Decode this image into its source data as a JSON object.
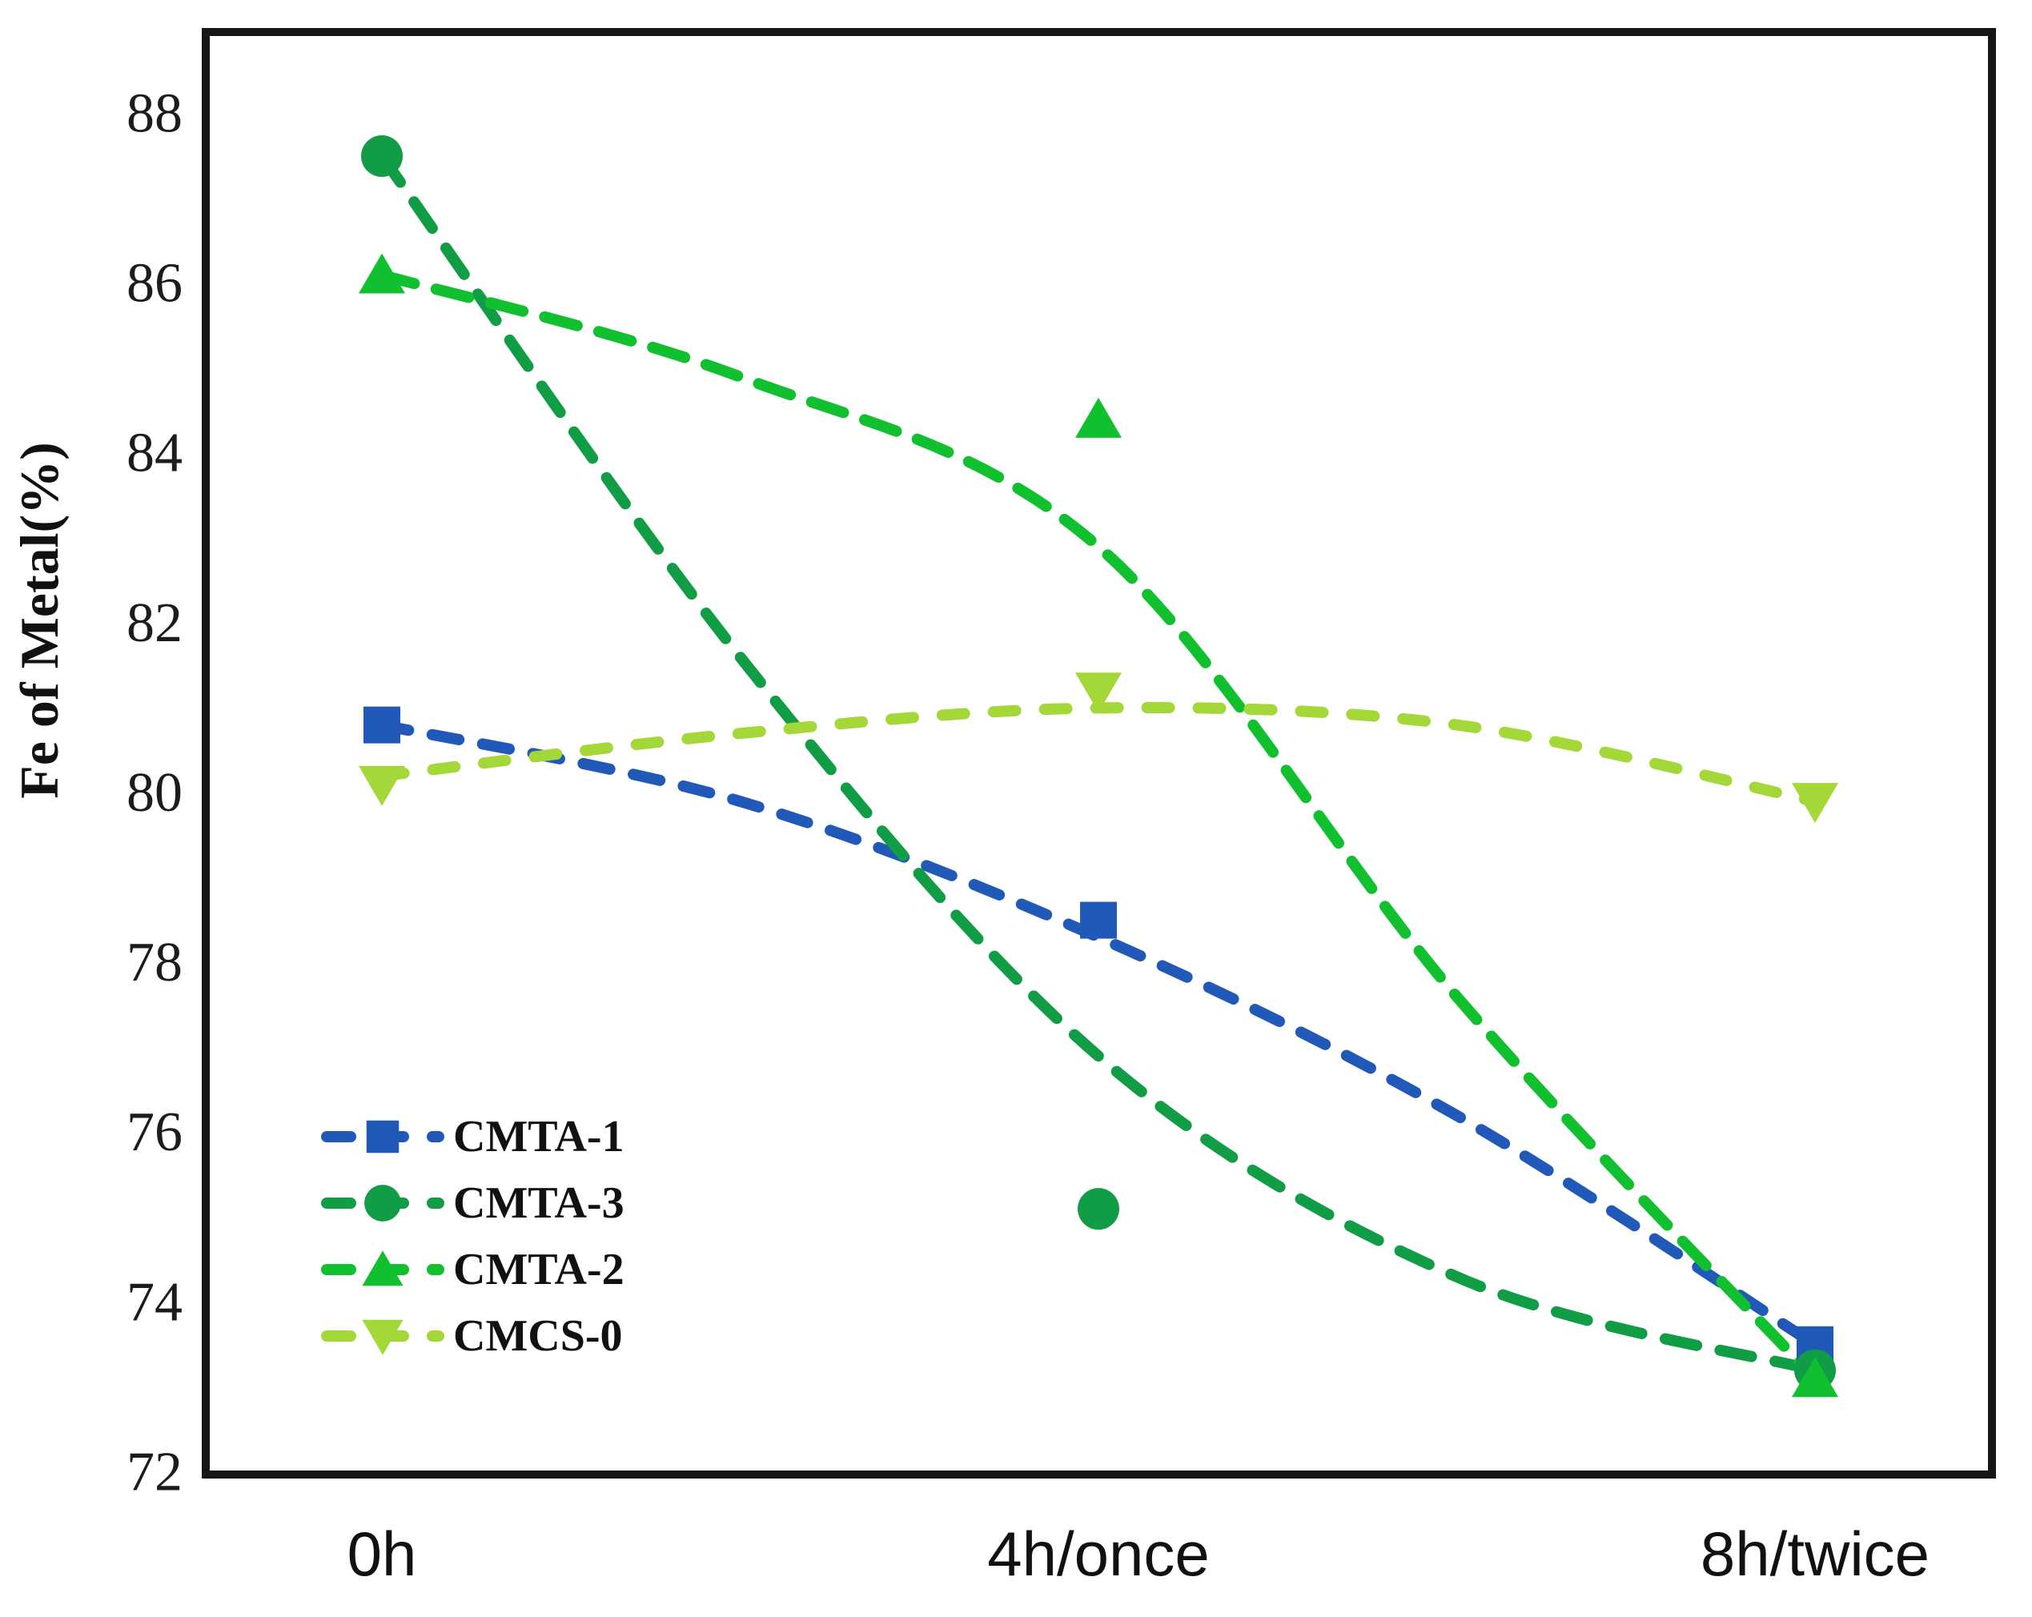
{
  "figure": {
    "background": "#ffffff",
    "frame_color": "#161616"
  },
  "chart_data": {
    "type": "scatter",
    "title": "",
    "xlabel": "",
    "ylabel": "Fe of Metal(%)",
    "categories": [
      "0h",
      "4h/once",
      "8h/twice"
    ],
    "ylim": [
      72,
      89
    ],
    "yticks": [
      88,
      86,
      84,
      82,
      80,
      78,
      76,
      74,
      72
    ],
    "grid": false,
    "legend_position": "inside-lower-left",
    "legend": [
      "CMTA-1",
      "CMTA-3",
      "CMTA-2",
      "CMCS-0"
    ],
    "series": [
      {
        "name": "CMTA-1",
        "color": "#2059b8",
        "marker": "square",
        "line_style": "dashed",
        "line_dash": "34 30",
        "values": [
          80.8,
          78.5,
          73.5
        ],
        "trend": [
          80.8,
          79.9,
          78.3,
          76.2,
          73.5
        ]
      },
      {
        "name": "CMTA-3",
        "color": "#119c46",
        "marker": "circle",
        "line_style": "dashed",
        "line_dash": "40 30",
        "values": [
          87.5,
          75.1,
          73.2
        ],
        "trend": [
          87.5,
          81.6,
          76.9,
          74.3,
          73.2
        ]
      },
      {
        "name": "CMTA-2",
        "color": "#10c02e",
        "marker": "triangle-up",
        "line_style": "dashed",
        "line_dash": "42 28",
        "values": [
          86.1,
          84.4,
          73.1
        ],
        "trend": [
          86.1,
          84.9,
          82.9,
          77.6,
          73.1
        ]
      },
      {
        "name": "CMCS-0",
        "color": "#a3d838",
        "marker": "triangle-down",
        "line_style": "dashed",
        "line_dash": "28 36",
        "values": [
          80.1,
          81.2,
          79.9
        ],
        "trend": [
          80.2,
          80.7,
          81.0,
          80.8,
          79.9
        ]
      }
    ]
  }
}
